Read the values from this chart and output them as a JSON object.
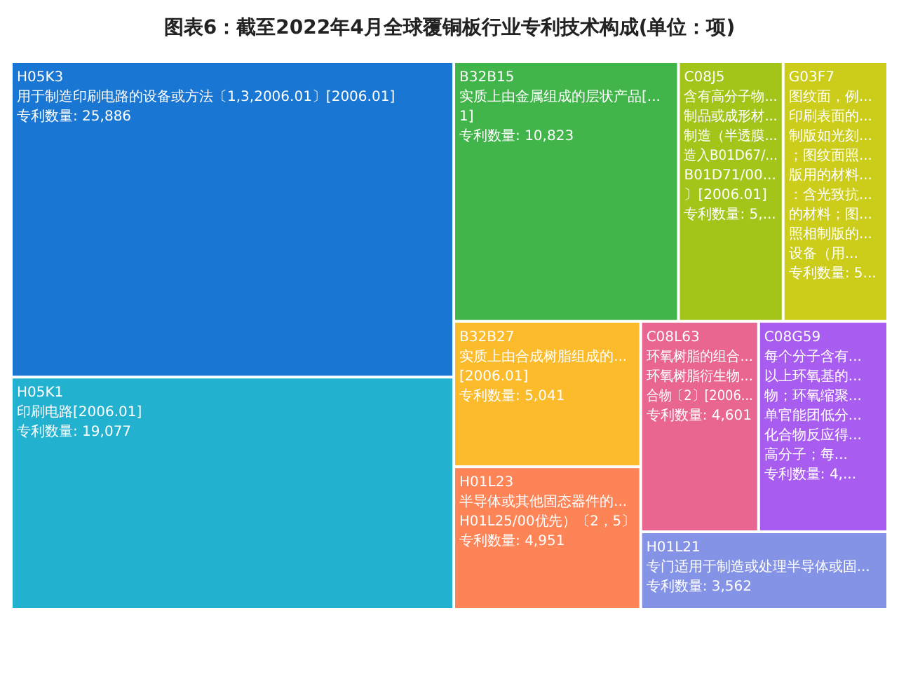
{
  "chart_data": {
    "type": "other",
    "title": "图表6：截至2022年4月全球覆铜板行业专利技术构成(单位：项)",
    "categories": [
      "H05K3\n用于制造印刷电路的设备或方法〔1,3,2006.01〕[2006.01]",
      "H05K1\n印刷电路[2006.01]",
      "B32B15\n实质上由金属组成的层状产品[...\n1]",
      "C08J5\n含有高分子物...\n制品或成形材...\n制造（半透膜...\n造入B01D67/...\nB01D71/00...\n〕[2006.01]",
      "G03F7\n图纹面，例...\n印刷表面的...\n制版如光刻...\n；图纹面照...\n版用的材料...\n：含光致抗...\n的材料；图...\n照相制版的...\n设备（用...",
      "B32B27\n实质上由合成树脂组成的...\n[2006.01]",
      "H01L23\n半导体或其他固态器件的...\nH01L25/00优先）〔2，5〕",
      "C08L63\n环氧树脂的组合...\n环氧树脂衍生物...\n合物〔2〕[2006...",
      "C08G59\n每个分子含有...\n以上环氧基的...\n物；环氧缩聚...\n单官能团低分...\n化合物反应得...\n高分子；每...",
      "H01L21\n专门适用于制造或处理半导体或固..."
    ],
    "values": [
      25886,
      19077,
      10823,
      null,
      null,
      5041,
      4951,
      4601,
      null,
      3562
    ],
    "value_labels": [
      "专利数量: 25,886",
      "专利数量: 19,077",
      "专利数量: 10,823",
      "专利数量: 5,...",
      "专利数量: 5...",
      "专利数量: 5,041",
      "专利数量: 4,951",
      "专利数量: 4,601",
      "专利数量: 4,...",
      "专利数量: 3,562"
    ],
    "colors": [
      "#1976d2",
      "#22b2d0",
      "#41b549",
      "#a3c51a",
      "#cccd1a",
      "#fbbb2a",
      "#fd8456",
      "#e8668f",
      "#a95cf0",
      "#8493e6"
    ]
  }
}
